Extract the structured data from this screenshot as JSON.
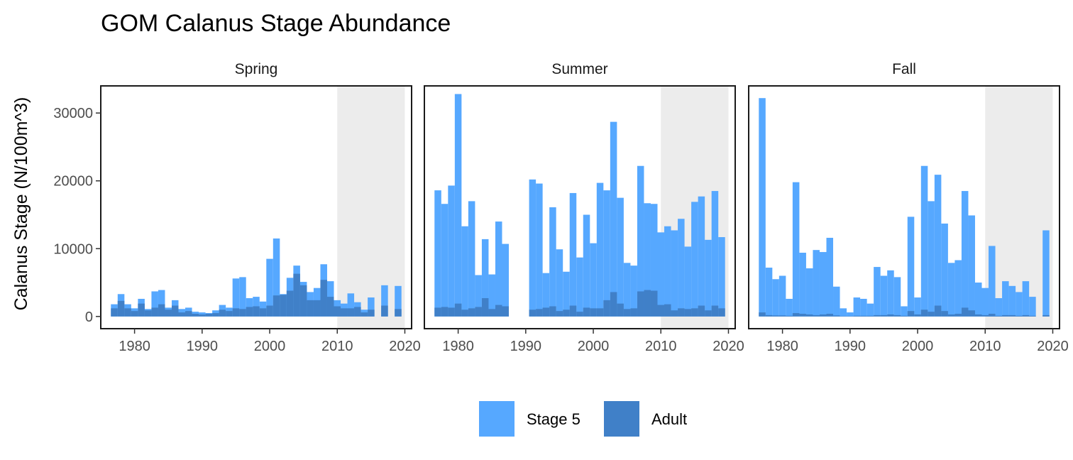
{
  "chart_data": {
    "type": "bar",
    "title": "GOM Calanus Stage Abundance",
    "ylabel": "Calanus Stage (N/100m^3)",
    "xlabel": "",
    "xlim": [
      1975,
      2021
    ],
    "ylim": [
      -1800,
      34000
    ],
    "x_ticks": [
      1980,
      1990,
      2000,
      2010,
      2020
    ],
    "y_ticks": [
      0,
      10000,
      20000,
      30000
    ],
    "shaded_period": [
      2010,
      2020
    ],
    "legend_position": "bottom",
    "colors": {
      "stage5": "#56a8ff",
      "adult": "#4080c8",
      "shade": "#ececec"
    },
    "series_names": [
      "Stage 5",
      "Adult"
    ],
    "panels": [
      {
        "name": "Spring",
        "years": [
          1977,
          1978,
          1979,
          1980,
          1981,
          1982,
          1983,
          1984,
          1985,
          1986,
          1987,
          1988,
          1989,
          1990,
          1991,
          1992,
          1993,
          1994,
          1995,
          1996,
          1997,
          1998,
          1999,
          2000,
          2001,
          2002,
          2003,
          2004,
          2005,
          2006,
          2007,
          2008,
          2009,
          2010,
          2011,
          2012,
          2013,
          2014,
          2015,
          2016,
          2017,
          2018,
          2019
        ],
        "stage5": [
          1800,
          3300,
          1800,
          1200,
          2600,
          1100,
          3700,
          3900,
          1300,
          2400,
          1100,
          1300,
          700,
          600,
          500,
          900,
          1700,
          1300,
          5600,
          5800,
          2700,
          2900,
          2200,
          8500,
          11500,
          3300,
          5700,
          7500,
          5100,
          3600,
          4200,
          7700,
          5200,
          2400,
          1900,
          3400,
          2100,
          1000,
          2800,
          0,
          4600,
          0,
          4500
        ],
        "adult": [
          1200,
          2300,
          1200,
          800,
          1900,
          900,
          1300,
          1800,
          1000,
          1600,
          600,
          800,
          400,
          300,
          400,
          500,
          1000,
          800,
          1200,
          1100,
          1400,
          1500,
          1200,
          1600,
          3100,
          3200,
          3800,
          6300,
          4600,
          2400,
          2400,
          5400,
          2900,
          1500,
          1200,
          1200,
          1400,
          600,
          1000,
          0,
          1600,
          0,
          1100
        ]
      },
      {
        "name": "Summer",
        "years": [
          1977,
          1978,
          1979,
          1980,
          1981,
          1982,
          1983,
          1984,
          1985,
          1986,
          1987,
          1988,
          1989,
          1990,
          1991,
          1992,
          1993,
          1994,
          1995,
          1996,
          1997,
          1998,
          1999,
          2000,
          2001,
          2002,
          2003,
          2004,
          2005,
          2006,
          2007,
          2008,
          2009,
          2010,
          2011,
          2012,
          2013,
          2014,
          2015,
          2016,
          2017,
          2018,
          2019
        ],
        "stage5": [
          18600,
          16600,
          19300,
          32800,
          13300,
          17000,
          6100,
          11400,
          6200,
          14000,
          10700,
          0,
          0,
          0,
          20200,
          19600,
          6400,
          16100,
          9900,
          6600,
          18200,
          8700,
          15000,
          10800,
          19700,
          18600,
          28700,
          17500,
          7900,
          7500,
          22200,
          16700,
          16600,
          12400,
          13300,
          12700,
          14400,
          10300,
          16900,
          17700,
          11300,
          18500,
          11700
        ],
        "adult": [
          1300,
          1400,
          1300,
          1900,
          1000,
          1200,
          1400,
          2700,
          1100,
          1700,
          1500,
          0,
          0,
          0,
          1000,
          1100,
          1300,
          1500,
          800,
          1000,
          1600,
          700,
          1300,
          1200,
          1200,
          2400,
          3600,
          1900,
          1100,
          1200,
          3700,
          3900,
          3800,
          1700,
          1800,
          900,
          1200,
          1100,
          1200,
          1600,
          900,
          1600,
          1200
        ]
      },
      {
        "name": "Fall",
        "years": [
          1977,
          1978,
          1979,
          1980,
          1981,
          1982,
          1983,
          1984,
          1985,
          1986,
          1987,
          1988,
          1989,
          1990,
          1991,
          1992,
          1993,
          1994,
          1995,
          1996,
          1997,
          1998,
          1999,
          2000,
          2001,
          2002,
          2003,
          2004,
          2005,
          2006,
          2007,
          2008,
          2009,
          2010,
          2011,
          2012,
          2013,
          2014,
          2015,
          2016,
          2017,
          2018,
          2019
        ],
        "stage5": [
          32200,
          7200,
          5500,
          6000,
          2600,
          19800,
          9400,
          7100,
          9800,
          9500,
          11600,
          4400,
          1200,
          600,
          2800,
          2600,
          1900,
          7300,
          6000,
          6800,
          5800,
          1500,
          14700,
          2800,
          22200,
          17000,
          20900,
          13700,
          7900,
          8300,
          18500,
          14900,
          5000,
          4200,
          10400,
          2700,
          5200,
          4500,
          3600,
          5200,
          2900,
          0,
          12700
        ],
        "adult": [
          600,
          200,
          150,
          150,
          100,
          500,
          400,
          300,
          200,
          300,
          400,
          150,
          50,
          50,
          100,
          100,
          100,
          200,
          200,
          300,
          200,
          100,
          800,
          300,
          1000,
          700,
          1600,
          800,
          300,
          400,
          1300,
          900,
          300,
          200,
          400,
          100,
          200,
          200,
          100,
          200,
          100,
          0,
          200
        ]
      }
    ]
  }
}
